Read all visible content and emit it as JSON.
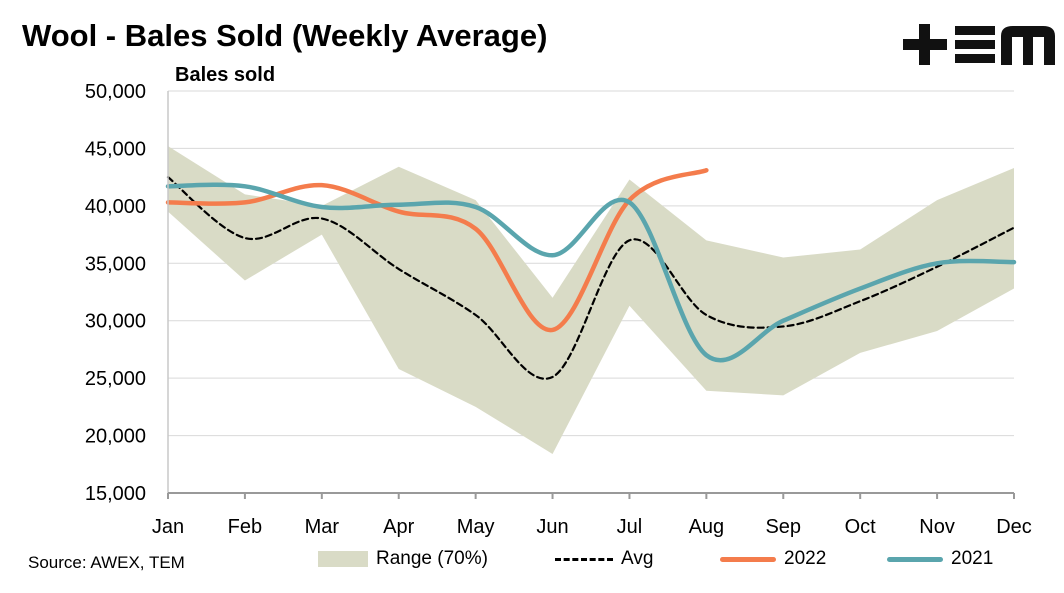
{
  "title": "Wool - Bales Sold (Weekly Average)",
  "logo_text": "TEM",
  "source": "Source: AWEX, TEM",
  "chart_data": {
    "type": "line",
    "title": "Wool - Bales Sold (Weekly Average)",
    "ylabel": "Bales sold",
    "xlabel": "",
    "ylim": [
      15000,
      50000
    ],
    "yticks": [
      15000,
      20000,
      25000,
      30000,
      35000,
      40000,
      45000,
      50000
    ],
    "ytick_labels": [
      "15,000",
      "20,000",
      "25,000",
      "30,000",
      "35,000",
      "40,000",
      "45,000",
      "50,000"
    ],
    "categories": [
      "Jan",
      "Feb",
      "Mar",
      "Apr",
      "May",
      "Jun",
      "Jul",
      "Aug",
      "Sep",
      "Oct",
      "Nov",
      "Dec"
    ],
    "grid": true,
    "legend_position": "bottom",
    "range": {
      "name": "Range (70%)",
      "color": "#d9dbc6",
      "upper": [
        45200,
        41000,
        40000,
        43400,
        40500,
        32000,
        42300,
        37000,
        35500,
        36200,
        40500,
        43300
      ],
      "lower": [
        39500,
        33500,
        37500,
        25800,
        22500,
        18400,
        31300,
        23900,
        23500,
        27200,
        29100,
        32800
      ]
    },
    "series": [
      {
        "name": "Avg",
        "color": "#000000",
        "dashed": true,
        "values": [
          42500,
          37200,
          38900,
          34500,
          30500,
          25100,
          37000,
          30500,
          29500,
          31700,
          34700,
          38100
        ]
      },
      {
        "name": "2022",
        "color": "#f47c4c",
        "dashed": false,
        "values": [
          40300,
          40300,
          41800,
          39500,
          38000,
          29200,
          40500,
          43100,
          null,
          null,
          null,
          null
        ]
      },
      {
        "name": "2021",
        "color": "#5aa5ad",
        "dashed": false,
        "values": [
          41700,
          41700,
          39900,
          40100,
          39900,
          35700,
          40300,
          27000,
          30000,
          32800,
          35000,
          35100
        ]
      }
    ]
  }
}
